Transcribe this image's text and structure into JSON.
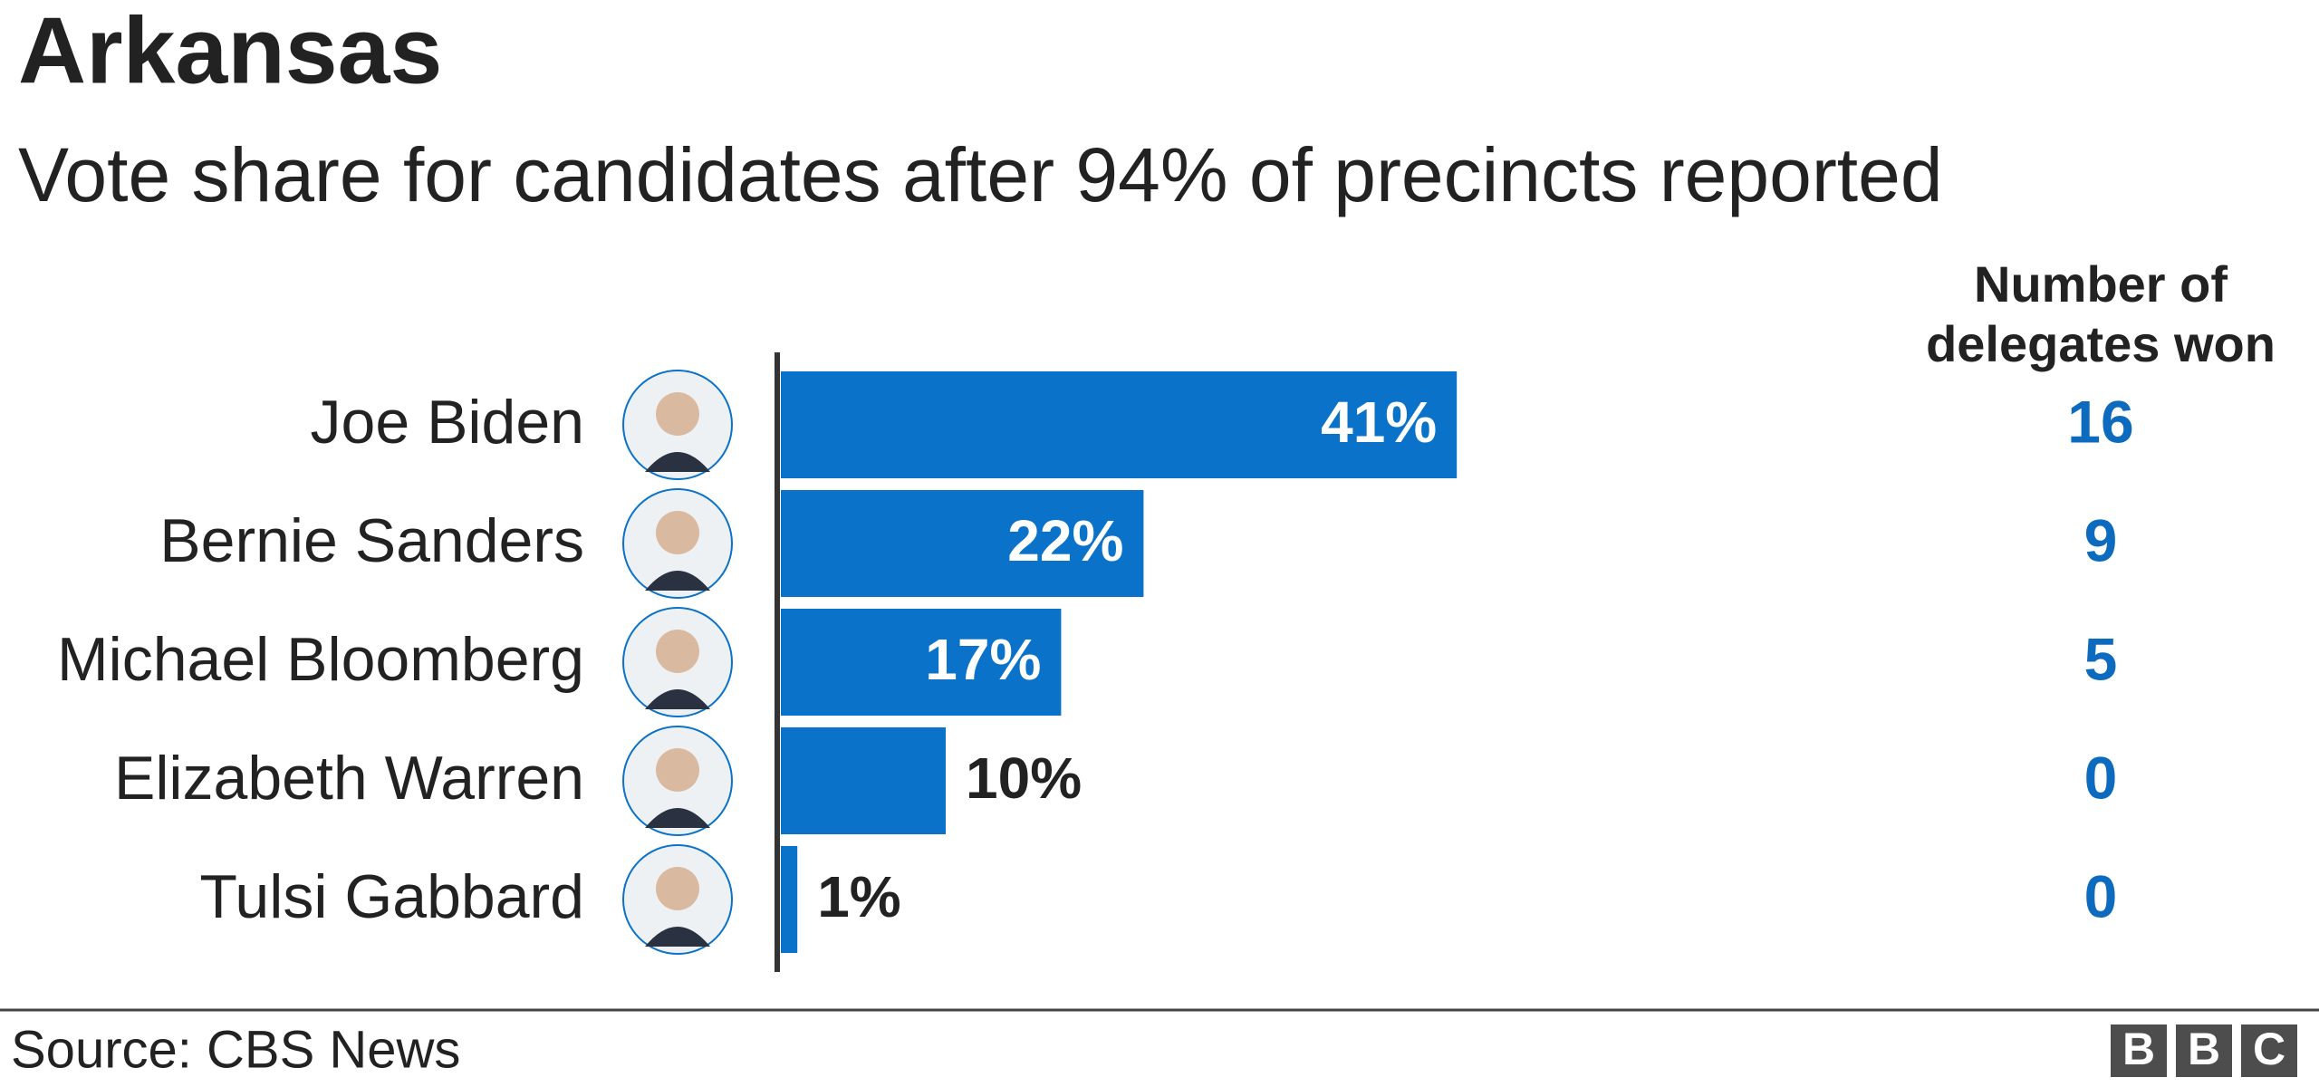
{
  "chart_data": {
    "type": "bar",
    "orientation": "horizontal",
    "title": "Arkansas",
    "subtitle": "Vote share for candidates after 94% of precincts reported",
    "categories": [
      "Joe Biden",
      "Bernie Sanders",
      "Michael Bloomberg",
      "Elizabeth Warren",
      "Tulsi Gabbard"
    ],
    "values": [
      41,
      22,
      17,
      10,
      1
    ],
    "value_labels": [
      "41%",
      "22%",
      "17%",
      "10%",
      "1%"
    ],
    "color": "#0a73c9",
    "delegates": {
      "header": [
        "Number of",
        "delegates won"
      ],
      "values": [
        16,
        9,
        5,
        0,
        0
      ],
      "color": "#0c6bbf"
    }
  },
  "source": "Source: CBS News",
  "logo": [
    "B",
    "B",
    "C"
  ]
}
